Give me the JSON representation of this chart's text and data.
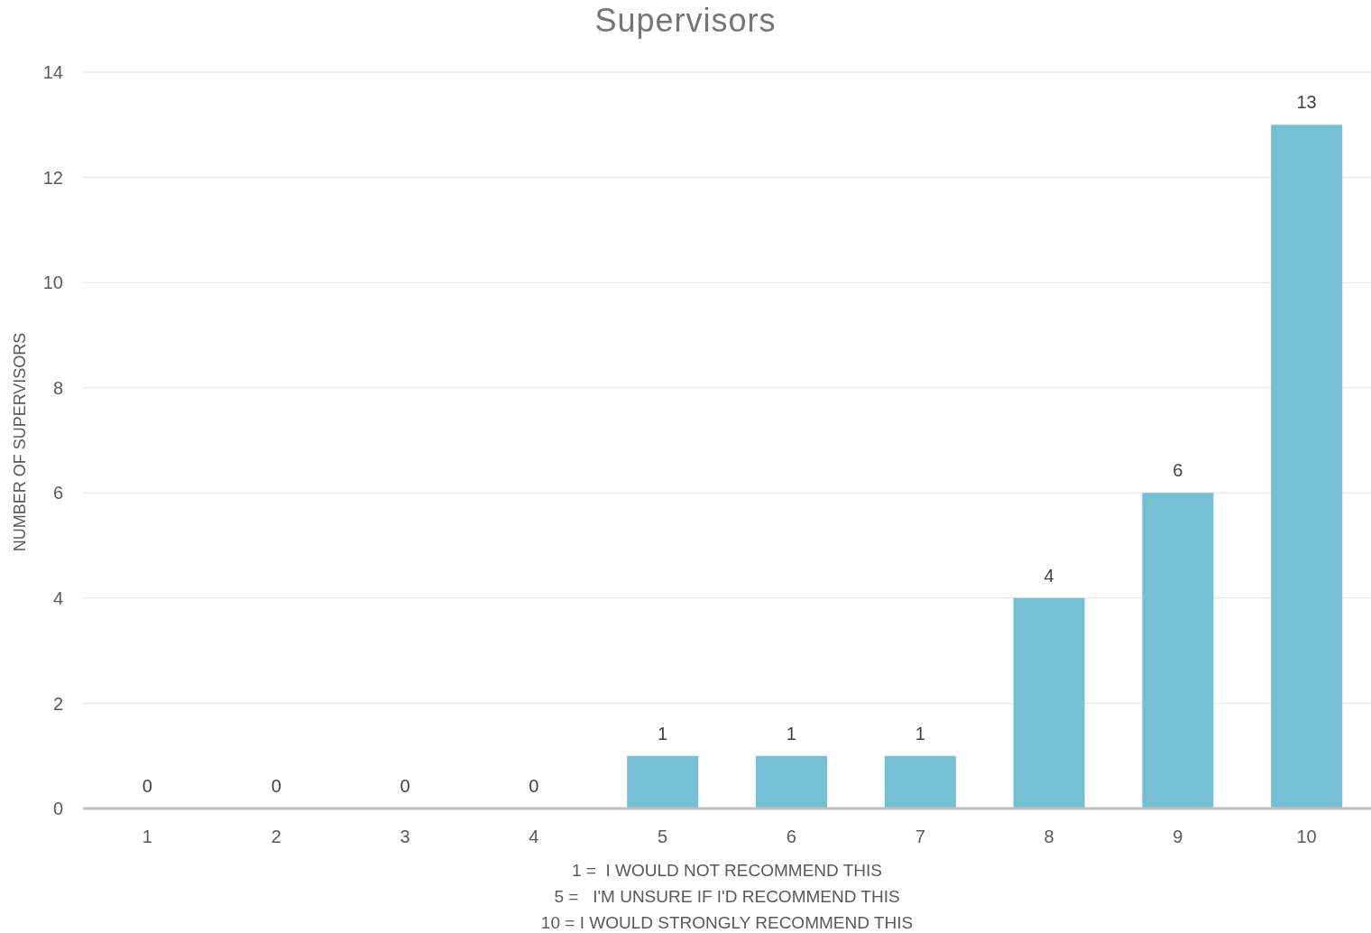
{
  "chart_data": {
    "type": "bar",
    "title": "Supervisors",
    "xlabel": "1 =  I WOULD NOT RECOMMEND THIS\n5 =   I'M UNSURE IF I'D RECOMMEND THIS\n10 = I WOULD STRONGLY RECOMMEND THIS",
    "ylabel": "NUMBER OF SUPERVISORS",
    "categories": [
      "1",
      "2",
      "3",
      "4",
      "5",
      "6",
      "7",
      "8",
      "9",
      "10"
    ],
    "values": [
      0,
      0,
      0,
      0,
      1,
      1,
      1,
      4,
      6,
      13
    ],
    "color": "#75bfd4",
    "ylim": [
      0,
      14
    ],
    "yticks": [
      0,
      2,
      4,
      6,
      8,
      10,
      12,
      14
    ],
    "grid": "y",
    "data_labels": true
  }
}
